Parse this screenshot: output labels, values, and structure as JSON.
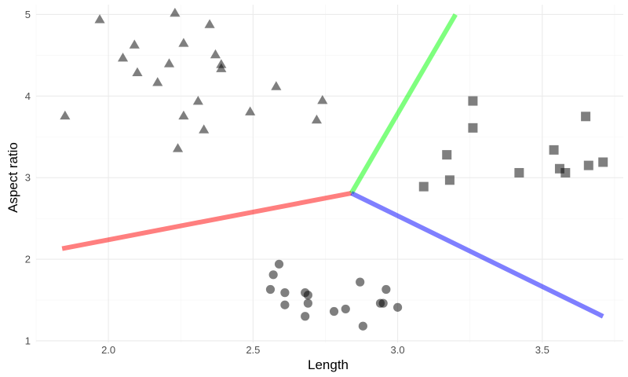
{
  "chart_data": {
    "type": "scatter",
    "title": "",
    "xlabel": "Length",
    "ylabel": "Aspect ratio",
    "xlim": [
      1.75,
      3.78
    ],
    "ylim": [
      0.98,
      5.12
    ],
    "x_ticks": [
      2.0,
      2.5,
      3.0,
      3.5
    ],
    "x_tick_labels": [
      "2.0",
      "2.5",
      "3.0",
      "3.5"
    ],
    "y_ticks": [
      1,
      2,
      3,
      4,
      5
    ],
    "y_tick_labels": [
      "1",
      "2",
      "3",
      "4",
      "5"
    ],
    "grid": true,
    "legend": "none",
    "point_color": "#000000",
    "point_opacity": 0.5,
    "series": [
      {
        "shape": "triangle",
        "points": [
          [
            1.85,
            3.75
          ],
          [
            1.97,
            4.93
          ],
          [
            2.05,
            4.46
          ],
          [
            2.09,
            4.62
          ],
          [
            2.1,
            4.28
          ],
          [
            2.17,
            4.16
          ],
          [
            2.21,
            4.39
          ],
          [
            2.23,
            5.01
          ],
          [
            2.24,
            3.35
          ],
          [
            2.26,
            3.75
          ],
          [
            2.26,
            4.64
          ],
          [
            2.31,
            3.93
          ],
          [
            2.33,
            3.58
          ],
          [
            2.35,
            4.87
          ],
          [
            2.37,
            4.5
          ],
          [
            2.39,
            4.33
          ],
          [
            2.39,
            4.38
          ],
          [
            2.49,
            3.8
          ],
          [
            2.58,
            4.11
          ],
          [
            2.72,
            3.7
          ],
          [
            2.74,
            3.94
          ]
        ]
      },
      {
        "shape": "circle",
        "points": [
          [
            2.56,
            1.63
          ],
          [
            2.57,
            1.81
          ],
          [
            2.59,
            1.94
          ],
          [
            2.61,
            1.59
          ],
          [
            2.61,
            1.44
          ],
          [
            2.68,
            1.3
          ],
          [
            2.68,
            1.59
          ],
          [
            2.69,
            1.56
          ],
          [
            2.69,
            1.46
          ],
          [
            2.78,
            1.36
          ],
          [
            2.82,
            1.39
          ],
          [
            2.87,
            1.72
          ],
          [
            2.88,
            1.18
          ],
          [
            2.94,
            1.46
          ],
          [
            2.95,
            1.46
          ],
          [
            2.96,
            1.63
          ],
          [
            3.0,
            1.41
          ]
        ]
      },
      {
        "shape": "square",
        "points": [
          [
            3.09,
            2.89
          ],
          [
            3.17,
            3.28
          ],
          [
            3.18,
            2.97
          ],
          [
            3.26,
            3.94
          ],
          [
            3.26,
            3.61
          ],
          [
            3.42,
            3.06
          ],
          [
            3.54,
            3.34
          ],
          [
            3.56,
            3.11
          ],
          [
            3.58,
            3.06
          ],
          [
            3.65,
            3.75
          ],
          [
            3.66,
            3.15
          ],
          [
            3.71,
            3.19
          ]
        ]
      }
    ],
    "lines": [
      {
        "color": "#ff0000",
        "opacity": 0.5,
        "points": [
          [
            1.84,
            2.13
          ],
          [
            2.84,
            2.81
          ]
        ]
      },
      {
        "color": "#00ff00",
        "opacity": 0.5,
        "points": [
          [
            2.84,
            2.81
          ],
          [
            3.2,
            5.0
          ]
        ]
      },
      {
        "color": "#0000ff",
        "opacity": 0.5,
        "points": [
          [
            2.84,
            2.81
          ],
          [
            3.71,
            1.3
          ]
        ]
      }
    ]
  }
}
